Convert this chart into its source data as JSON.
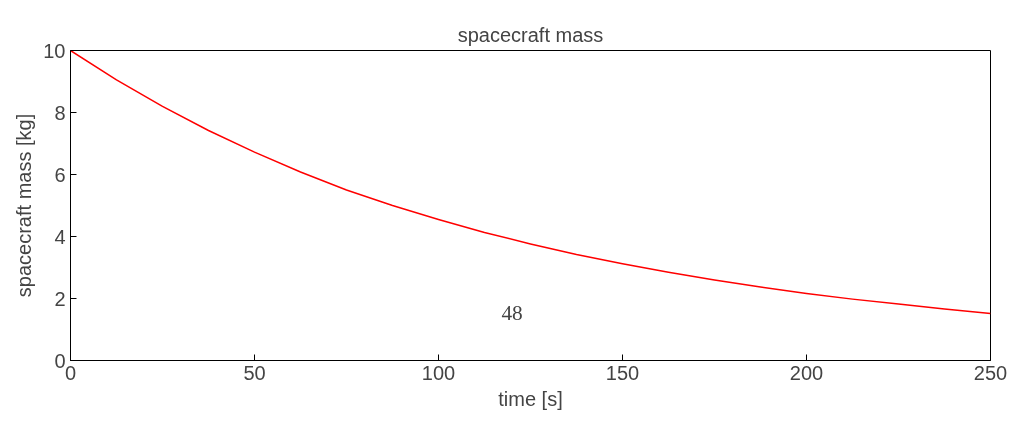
{
  "chart_data": {
    "type": "line",
    "title": "spacecraft mass",
    "xlabel": "time [s]",
    "ylabel": "spacecraft mass [kg]",
    "x": [
      0,
      12.5,
      25,
      37.5,
      50,
      62.5,
      75,
      87.5,
      100,
      112.5,
      125,
      137.5,
      150,
      162.5,
      175,
      187.5,
      200,
      212.5,
      225,
      237.5,
      250
    ],
    "series": [
      {
        "color": "#ff0000",
        "values": [
          10,
          9.05,
          8.2,
          7.42,
          6.72,
          6.08,
          5.5,
          5.0,
          4.55,
          4.13,
          3.76,
          3.42,
          3.12,
          2.85,
          2.6,
          2.37,
          2.16,
          1.98,
          1.82,
          1.66,
          1.52
        ]
      }
    ],
    "xlim": [
      0,
      250
    ],
    "xticks": [
      0,
      50,
      100,
      150,
      200,
      250
    ],
    "ylim": [
      0,
      10
    ],
    "yticks": [
      0,
      2,
      4,
      6,
      8,
      10
    ],
    "annotations": [
      "48"
    ],
    "grid": false,
    "marker": "none",
    "line_style": "solid"
  }
}
